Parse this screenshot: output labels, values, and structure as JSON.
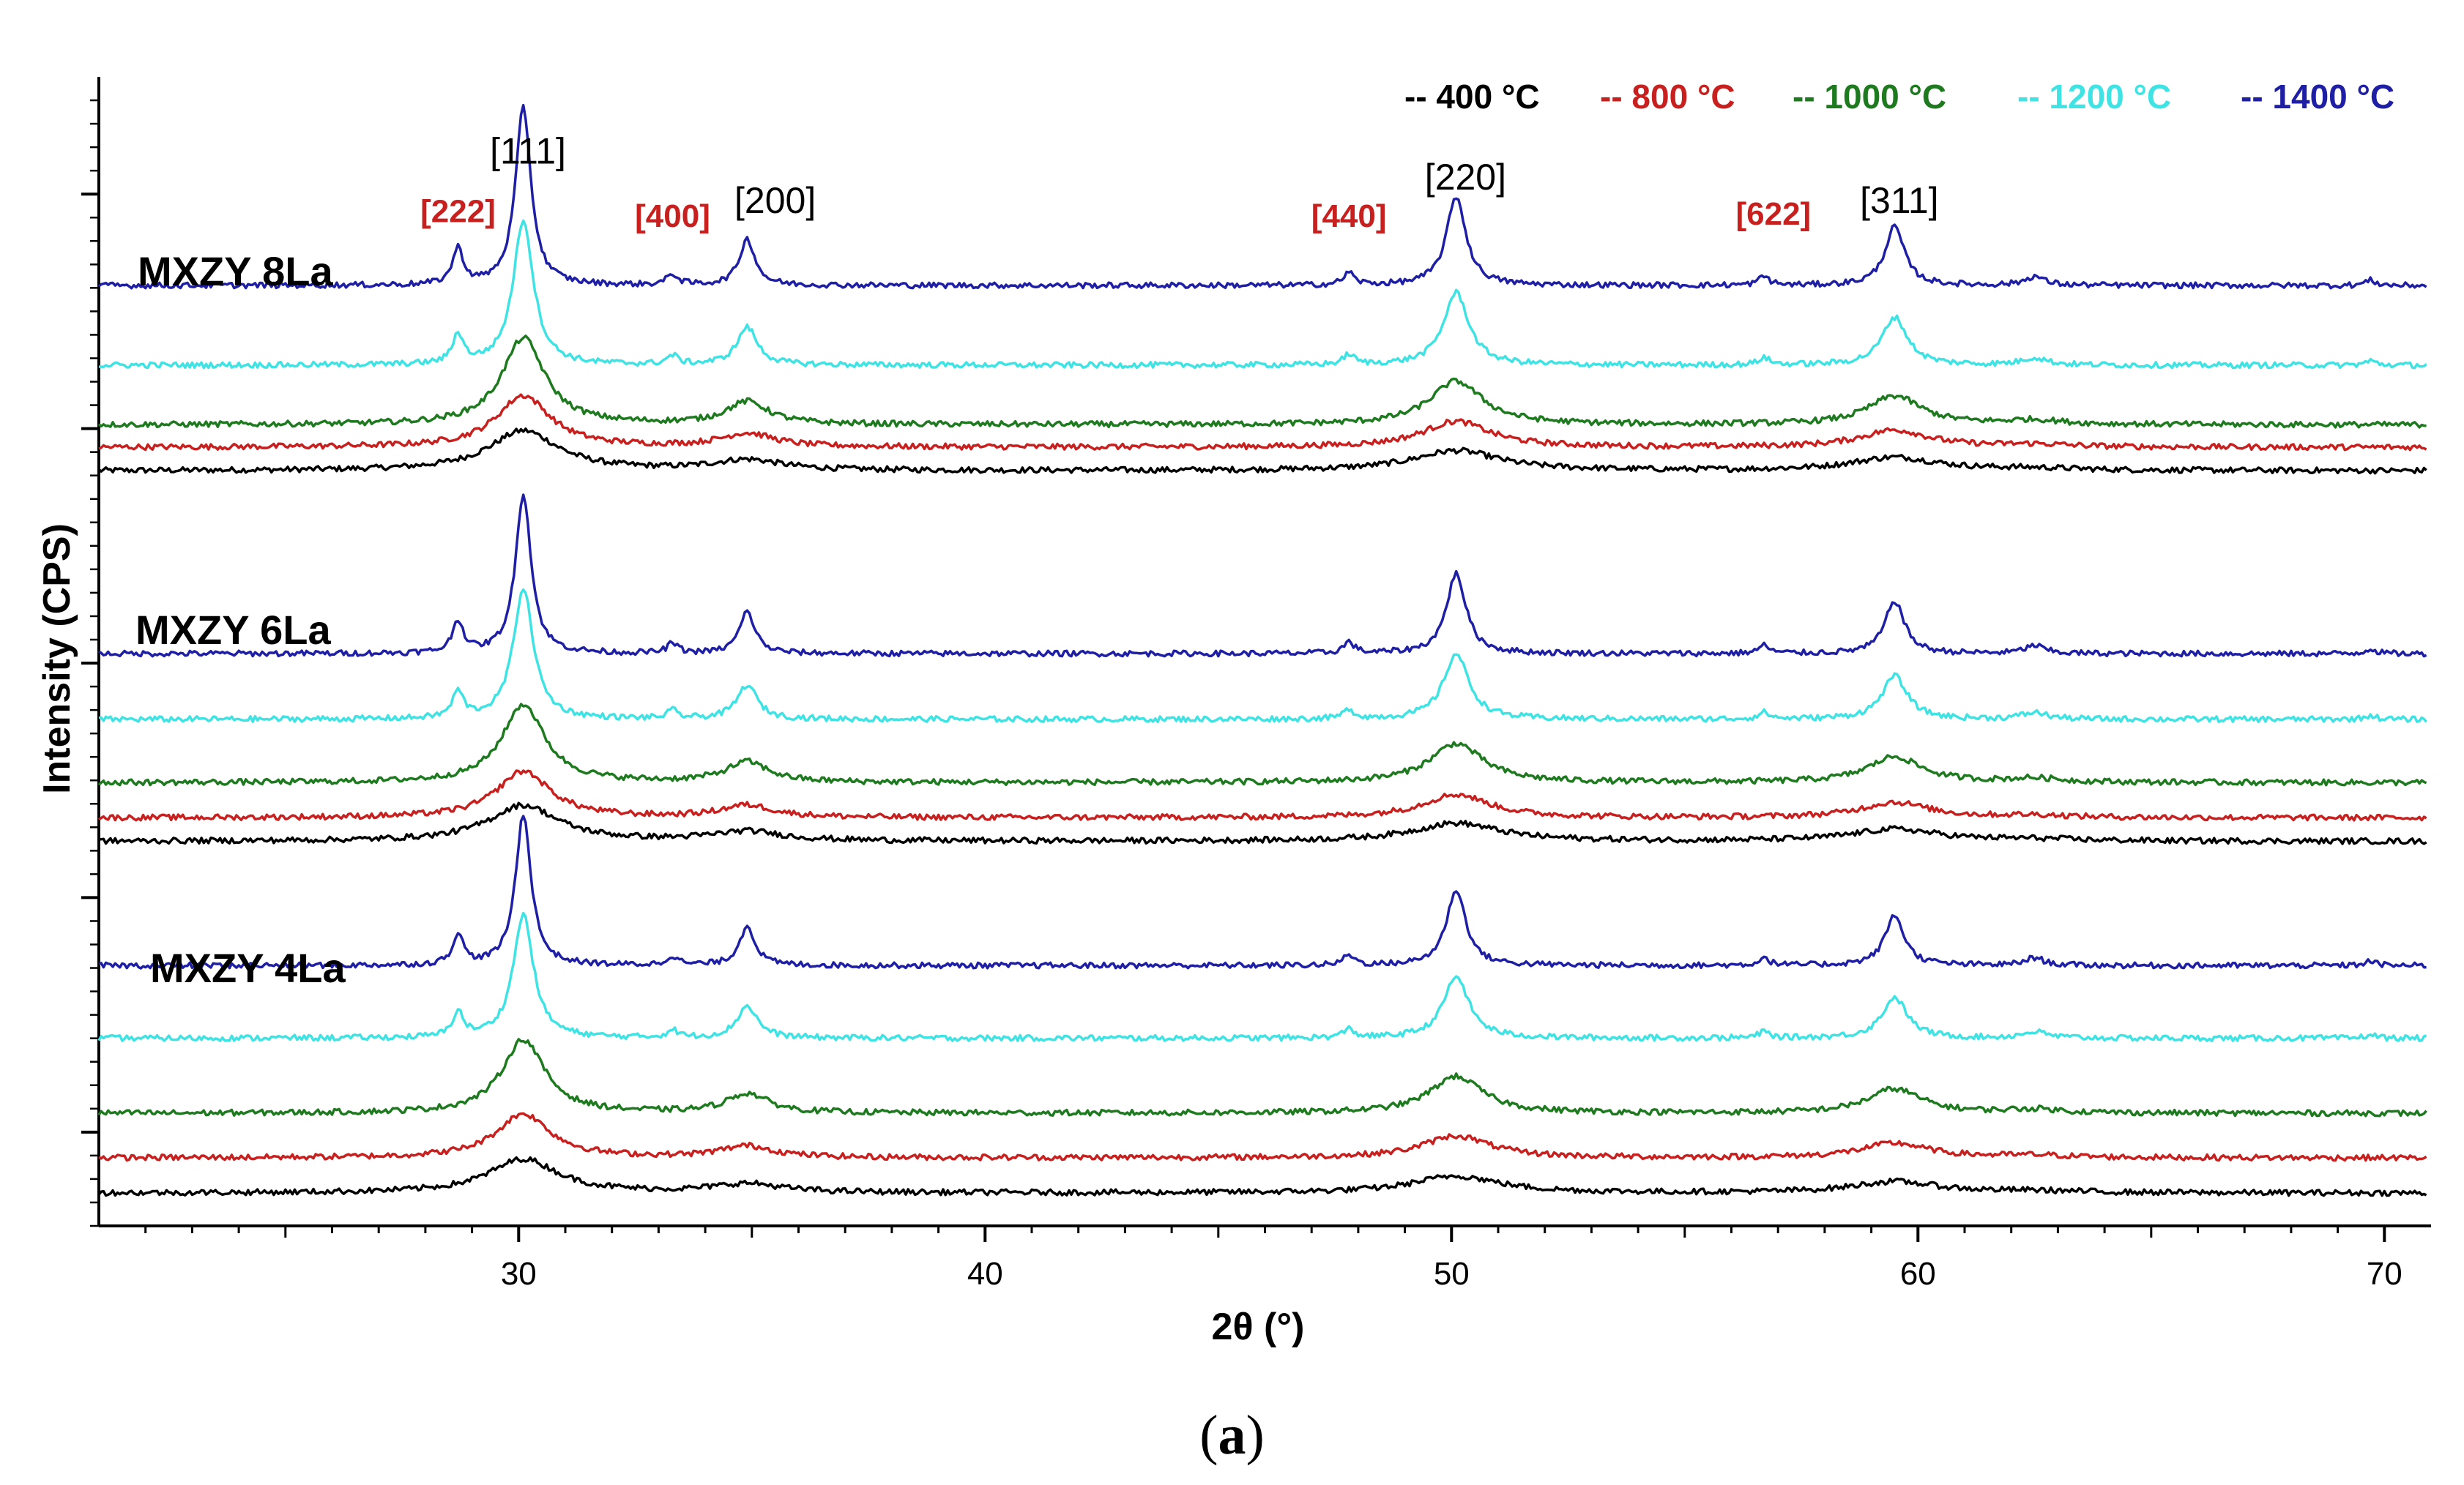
{
  "chart_data": {
    "type": "line",
    "xlabel": "2θ (°)",
    "ylabel": "Intensity (CPS)",
    "xlim": [
      21,
      71
    ],
    "xticks": [
      30,
      40,
      50,
      60,
      70
    ],
    "grid": false,
    "legend_position": "top-right",
    "panel_label": "(a)",
    "panel_label_parts": {
      "open": "(",
      "letter": "a",
      "close": ")"
    },
    "series_colors": {
      "400 °C": "#000000",
      "800 °C": "#c8201e",
      "1000 °C": "#1e7a1e",
      "1200 °C": "#3fe3e3",
      "1400 °C": "#1f1fa6"
    },
    "legend": [
      {
        "label": "-- 400 °C",
        "series": "400 °C"
      },
      {
        "label": "-- 800 °C",
        "series": "800 °C"
      },
      {
        "label": "-- 1000 °C",
        "series": "1000 °C"
      },
      {
        "label": "-- 1200 °C",
        "series": "1200 °C"
      },
      {
        "label": "-- 1400 °C",
        "series": "1400 °C"
      }
    ],
    "groups": [
      {
        "name": "MXZY 8La",
        "baselines": {
          "400 °C": 4.1,
          "800 °C": 4.6,
          "1000 °C": 5.08,
          "1200 °C": 6.35,
          "1400 °C": 8.05
        }
      },
      {
        "name": "MXZY 6La",
        "baselines": {
          "400 °C": -3.8,
          "800 °C": -3.3,
          "1000 °C": -2.55,
          "1200 °C": -1.2,
          "1400 °C": 0.2
        }
      },
      {
        "name": "MXZY 4La",
        "baselines": {
          "400 °C": -11.3,
          "800 °C": -10.55,
          "1000 °C": -9.6,
          "1200 °C": -8.0,
          "1400 °C": -6.45
        }
      }
    ],
    "peak_labels": [
      {
        "text": "[222]",
        "x": 28.7,
        "y": 9.4,
        "color": "#c8201e"
      },
      {
        "text": "[111]",
        "x": 30.2,
        "y": 10.65,
        "color": "#000000"
      },
      {
        "text": "[400]",
        "x": 33.3,
        "y": 9.3,
        "color": "#c8201e"
      },
      {
        "text": "[200]",
        "x": 35.5,
        "y": 9.6,
        "color": "#000000"
      },
      {
        "text": "[440]",
        "x": 47.8,
        "y": 9.3,
        "color": "#c8201e"
      },
      {
        "text": "[220]",
        "x": 50.3,
        "y": 10.1,
        "color": "#000000"
      },
      {
        "text": "[622]",
        "x": 56.9,
        "y": 9.35,
        "color": "#c8201e"
      },
      {
        "text": "[311]",
        "x": 59.6,
        "y": 9.6,
        "color": "#000000"
      }
    ]
  }
}
